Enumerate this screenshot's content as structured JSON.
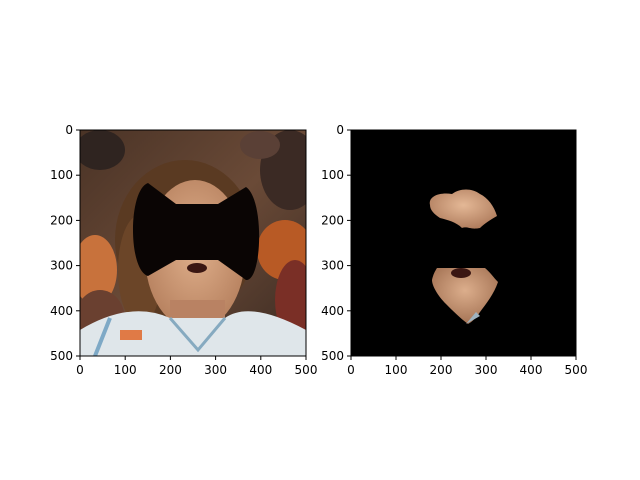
{
  "figure": {
    "panels": [
      {
        "name": "masked-face-photo",
        "content": "photo of a basketball player's face with a black bow-tie shaped mask covering the eyes and nose region",
        "x_ticks": [
          "0",
          "100",
          "200",
          "300",
          "400",
          "500"
        ],
        "y_ticks": [
          "0",
          "100",
          "200",
          "300",
          "400",
          "500"
        ]
      },
      {
        "name": "extracted-face-regions",
        "content": "black background with two extracted skin regions: forehead/brow patch and lower face (mouth/chin) patch",
        "x_ticks": [
          "0",
          "100",
          "200",
          "300",
          "400",
          "500"
        ],
        "y_ticks": [
          "0",
          "100",
          "200",
          "300",
          "400",
          "500"
        ]
      }
    ],
    "colors": {
      "mask": "#0a0504",
      "background_right": "#000000",
      "skin": "#c8906e",
      "jersey": "#dfe6ea",
      "hair": "#5a3a22",
      "crowd_orange": "#c8642a"
    }
  }
}
